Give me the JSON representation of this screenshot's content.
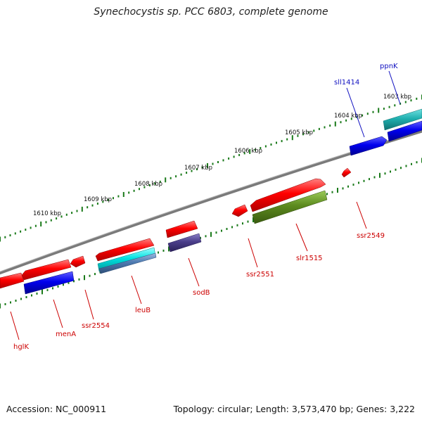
{
  "title": "Synechocystis sp. PCC 6803, complete genome",
  "footer": {
    "accession": "Accession: NC_000911",
    "summary": "Topology: circular; Length: 3,573,470 bp; Genes: 3,222"
  },
  "ticks": [
    "1603 kbp",
    "1604 kbp",
    "1605 kbp",
    "1606 kbp",
    "1607 kbp",
    "1608 kbp",
    "1609 kbp",
    "1610 kbp"
  ],
  "genes_forward": [
    "sll1414",
    "ppnK"
  ],
  "genes_reverse": [
    "hglK",
    "menA",
    "ssr2554",
    "leuB",
    "sodB",
    "ssr2551",
    "slr1515",
    "ssr2549"
  ],
  "colors": {
    "forward_label": "#1010c0",
    "reverse_label": "#cc0000",
    "tick": "#1a7a1a",
    "backbone": "#7a7a7a",
    "red": "#ff0000",
    "blue": "#0000ee",
    "cyan": "#00e0e0",
    "steel": "#4d7ab0",
    "violet": "#4a3e8a",
    "olive": "#5c8a1e",
    "teal": "#20b0b0"
  }
}
